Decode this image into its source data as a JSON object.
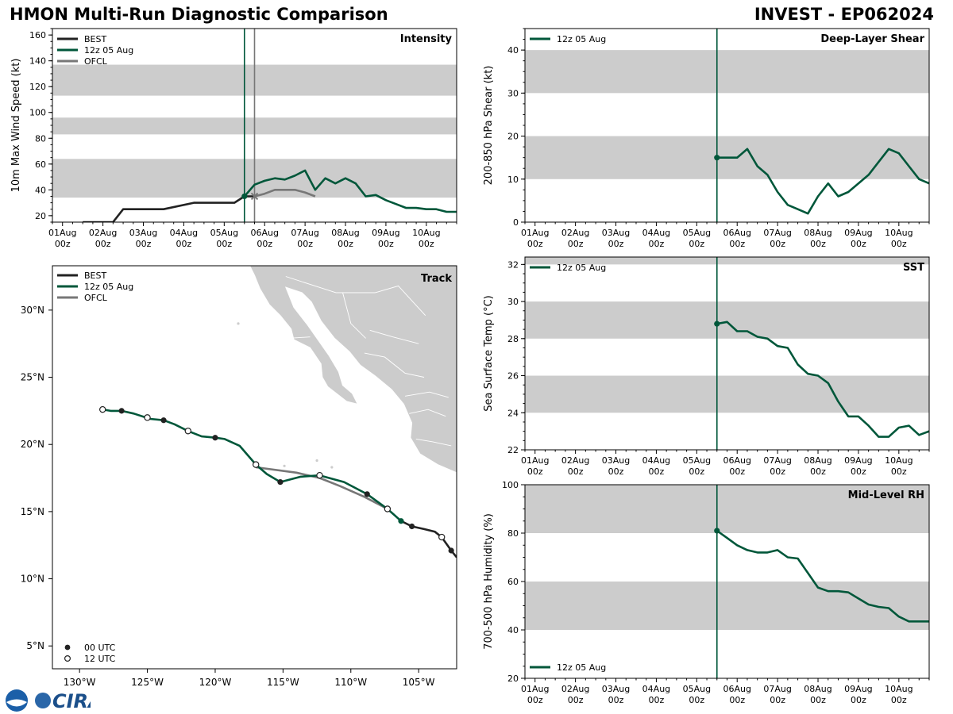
{
  "header": {
    "title_left": "HMON Multi-Run Diagnostic Comparison",
    "title_right": "INVEST - EP062024"
  },
  "logo": {
    "text": "CIRA"
  },
  "colors": {
    "best": "#222222",
    "run": "#00573a",
    "ofcl": "#777777",
    "band": "#cccccc",
    "land": "#cccccc"
  },
  "chart_data": [
    {
      "id": "intensity",
      "type": "line",
      "title": "Intensity",
      "ylabel": "10m Max Wind Speed (kt)",
      "ylim": [
        15,
        165
      ],
      "yticks": [
        20,
        40,
        60,
        80,
        100,
        120,
        140,
        160
      ],
      "xlim": [
        -0.25,
        9.75
      ],
      "xtick_days": [
        0,
        1,
        2,
        3,
        4,
        5,
        6,
        7,
        8,
        9
      ],
      "xtick_labels": [
        "01Aug",
        "02Aug",
        "03Aug",
        "04Aug",
        "05Aug",
        "06Aug",
        "07Aug",
        "08Aug",
        "09Aug",
        "10Aug"
      ],
      "xtick_sub": "00z",
      "bands": [
        [
          34,
          64
        ],
        [
          83,
          96
        ],
        [
          113,
          137
        ]
      ],
      "vlines": [
        {
          "x": 4.5,
          "series": "run"
        },
        {
          "x": 4.75,
          "series": "ofcl"
        }
      ],
      "legend": [
        "BEST",
        "12z 05 Aug",
        "OFCL"
      ],
      "series": [
        {
          "name": "BEST",
          "key": "best",
          "x": [
            0.5,
            1.25,
            1.5,
            2.25,
            2.5,
            3.25,
            3.5,
            4.0,
            4.25,
            4.5,
            4.75
          ],
          "y": [
            15,
            15,
            25,
            25,
            25,
            30,
            30,
            30,
            30,
            35,
            35
          ]
        },
        {
          "name": "12z 05 Aug",
          "key": "run",
          "x": [
            4.5,
            4.75,
            5.0,
            5.25,
            5.5,
            5.75,
            6.0,
            6.25,
            6.5,
            6.75,
            7.0,
            7.25,
            7.5,
            7.75,
            8.0,
            8.25,
            8.5,
            8.75,
            9.0,
            9.25,
            9.5,
            9.75
          ],
          "y": [
            35,
            44,
            47,
            49,
            48,
            51,
            55,
            40,
            49,
            45,
            49,
            45,
            35,
            36,
            32,
            29,
            26,
            26,
            25,
            25,
            23,
            23
          ]
        },
        {
          "name": "OFCL",
          "key": "ofcl",
          "x": [
            4.75,
            5.0,
            5.25,
            5.5,
            5.75,
            6.0,
            6.25
          ],
          "y": [
            35,
            37,
            40,
            40,
            40,
            38,
            35
          ]
        }
      ],
      "markers": [
        {
          "x": 4.5,
          "y": 35,
          "key": "run",
          "shape": "circle"
        },
        {
          "x": 4.75,
          "y": 35,
          "key": "ofcl",
          "shape": "x"
        }
      ]
    },
    {
      "id": "shear",
      "type": "line",
      "title": "Deep-Layer Shear",
      "ylabel": "200-850 hPa Shear (kt)",
      "ylim": [
        0,
        45
      ],
      "yticks": [
        0,
        10,
        20,
        30,
        40
      ],
      "xlim": [
        -0.25,
        9.75
      ],
      "xtick_days": [
        0,
        1,
        2,
        3,
        4,
        5,
        6,
        7,
        8,
        9
      ],
      "xtick_labels": [
        "01Aug",
        "02Aug",
        "03Aug",
        "04Aug",
        "05Aug",
        "06Aug",
        "07Aug",
        "08Aug",
        "09Aug",
        "10Aug"
      ],
      "xtick_sub": "00z",
      "bands": [
        [
          10,
          20
        ],
        [
          30,
          40
        ]
      ],
      "vlines": [
        {
          "x": 4.5,
          "series": "run"
        }
      ],
      "legend": [
        "12z 05 Aug"
      ],
      "series": [
        {
          "name": "12z 05 Aug",
          "key": "run",
          "x": [
            4.5,
            4.75,
            5.0,
            5.25,
            5.5,
            5.75,
            6.0,
            6.25,
            6.5,
            6.75,
            7.0,
            7.25,
            7.5,
            7.75,
            8.0,
            8.25,
            8.5,
            8.75,
            9.0,
            9.25,
            9.5,
            9.75
          ],
          "y": [
            15,
            15,
            15,
            17,
            13,
            11,
            7,
            4,
            3,
            2,
            6,
            9,
            6,
            7,
            9,
            11,
            14,
            17,
            16,
            13,
            10,
            9
          ]
        }
      ],
      "markers": [
        {
          "x": 4.5,
          "y": 15,
          "key": "run",
          "shape": "circle"
        }
      ]
    },
    {
      "id": "track",
      "type": "map",
      "title": "Track",
      "lon_range": [
        -132,
        -102.2
      ],
      "lat_range": [
        3.3,
        33.3
      ],
      "lon_ticks": [
        -130,
        -125,
        -120,
        -115,
        -110,
        -105
      ],
      "lon_labels": [
        "130°W",
        "125°W",
        "120°W",
        "115°W",
        "110°W",
        "105°W"
      ],
      "lat_ticks": [
        5,
        10,
        15,
        20,
        25,
        30
      ],
      "lat_labels": [
        "5°N",
        "10°N",
        "15°N",
        "20°N",
        "25°N",
        "30°N"
      ],
      "legend": [
        "BEST",
        "12z 05 Aug",
        "OFCL"
      ],
      "marker_legend": [
        "00 UTC",
        "12 UTC"
      ],
      "best": {
        "lon": [
          -102.2,
          -102.6,
          -103.3,
          -103.8,
          -104.6,
          -105.5,
          -106.3
        ],
        "lat": [
          11.6,
          12.1,
          13.1,
          13.5,
          13.7,
          13.9,
          14.3
        ],
        "points": [
          {
            "lon": -102.6,
            "lat": 12.1,
            "utc": "00"
          },
          {
            "lon": -103.3,
            "lat": 13.1,
            "utc": "12"
          },
          {
            "lon": -105.5,
            "lat": 13.9,
            "utc": "00"
          }
        ]
      },
      "run": {
        "lon": [
          -106.3,
          -107.3,
          -108.8,
          -110.5,
          -112.3,
          -113.7,
          -115.2,
          -116.2,
          -117.0,
          -118.2,
          -119.3,
          -120.0,
          -121.0,
          -122.0,
          -123.0,
          -123.8,
          -124.8,
          -126.0,
          -126.9,
          -127.7,
          -128.3
        ],
        "lat": [
          14.3,
          15.2,
          16.3,
          17.2,
          17.7,
          17.6,
          17.2,
          17.8,
          18.5,
          19.9,
          20.4,
          20.5,
          20.6,
          21.0,
          21.5,
          21.8,
          21.9,
          22.3,
          22.5,
          22.5,
          22.6
        ],
        "points": [
          {
            "lon": -106.3,
            "lat": 14.3,
            "utc": "00"
          },
          {
            "lon": -108.8,
            "lat": 16.3,
            "utc": "00"
          },
          {
            "lon": -112.3,
            "lat": 17.7,
            "utc": "12"
          },
          {
            "lon": -115.2,
            "lat": 17.2,
            "utc": "00"
          },
          {
            "lon": -117.0,
            "lat": 18.5,
            "utc": "12"
          },
          {
            "lon": -120.0,
            "lat": 20.5,
            "utc": "00"
          },
          {
            "lon": -122.0,
            "lat": 21.0,
            "utc": "12"
          },
          {
            "lon": -123.8,
            "lat": 21.8,
            "utc": "00"
          },
          {
            "lon": -125.0,
            "lat": 22.0,
            "utc": "12"
          },
          {
            "lon": -126.9,
            "lat": 22.5,
            "utc": "00"
          },
          {
            "lon": -128.3,
            "lat": 22.6,
            "utc": "12"
          }
        ]
      },
      "ofcl": {
        "lon": [
          -107.3,
          -109.0,
          -110.8,
          -112.3,
          -114.0,
          -117.0
        ],
        "lat": [
          15.2,
          16.1,
          16.9,
          17.5,
          17.9,
          18.3
        ],
        "points": [
          {
            "lon": -107.3,
            "lat": 15.2,
            "utc": "12"
          }
        ]
      }
    },
    {
      "id": "sst",
      "type": "line",
      "title": "SST",
      "ylabel": "Sea Surface Temp (°C)",
      "ylim": [
        22,
        32.4
      ],
      "yticks": [
        22,
        24,
        26,
        28,
        30,
        32
      ],
      "xlim": [
        -0.25,
        9.75
      ],
      "xtick_days": [
        0,
        1,
        2,
        3,
        4,
        5,
        6,
        7,
        8,
        9
      ],
      "xtick_labels": [
        "01Aug",
        "02Aug",
        "03Aug",
        "04Aug",
        "05Aug",
        "06Aug",
        "07Aug",
        "08Aug",
        "09Aug",
        "10Aug"
      ],
      "xtick_sub": "00z",
      "bands": [
        [
          24,
          26
        ],
        [
          28,
          30
        ],
        [
          32,
          32.4
        ]
      ],
      "vlines": [
        {
          "x": 4.5,
          "series": "run"
        }
      ],
      "legend": [
        "12z 05 Aug"
      ],
      "series": [
        {
          "name": "12z 05 Aug",
          "key": "run",
          "x": [
            4.5,
            4.75,
            5.0,
            5.25,
            5.5,
            5.75,
            6.0,
            6.25,
            6.5,
            6.75,
            7.0,
            7.25,
            7.5,
            7.75,
            8.0,
            8.25,
            8.5,
            8.75,
            9.0,
            9.25,
            9.5,
            9.75
          ],
          "y": [
            28.8,
            28.9,
            28.4,
            28.4,
            28.1,
            28.0,
            27.6,
            27.5,
            26.6,
            26.1,
            26.0,
            25.6,
            24.6,
            23.8,
            23.8,
            23.3,
            22.7,
            22.7,
            23.2,
            23.3,
            22.8,
            23.0
          ]
        }
      ],
      "markers": [
        {
          "x": 4.5,
          "y": 28.8,
          "key": "run",
          "shape": "circle"
        }
      ]
    },
    {
      "id": "rh",
      "type": "line",
      "title": "Mid-Level RH",
      "ylabel": "700-500 hPa Humidity (%)",
      "ylim": [
        20,
        100
      ],
      "yticks": [
        20,
        40,
        60,
        80,
        100
      ],
      "xlim": [
        -0.25,
        9.75
      ],
      "xtick_days": [
        0,
        1,
        2,
        3,
        4,
        5,
        6,
        7,
        8,
        9
      ],
      "xtick_labels": [
        "01Aug",
        "02Aug",
        "03Aug",
        "04Aug",
        "05Aug",
        "06Aug",
        "07Aug",
        "08Aug",
        "09Aug",
        "10Aug"
      ],
      "xtick_sub": "00z",
      "bands": [
        [
          40,
          60
        ],
        [
          80,
          100
        ]
      ],
      "vlines": [
        {
          "x": 4.5,
          "series": "run"
        }
      ],
      "legend": [
        "12z 05 Aug"
      ],
      "series": [
        {
          "name": "12z 05 Aug",
          "key": "run",
          "x": [
            4.5,
            4.75,
            5.0,
            5.25,
            5.5,
            5.75,
            6.0,
            6.25,
            6.5,
            6.75,
            7.0,
            7.25,
            7.5,
            7.75,
            8.0,
            8.25,
            8.5,
            8.75,
            9.0,
            9.25,
            9.5,
            9.75
          ],
          "y": [
            81,
            78,
            75,
            73,
            72,
            72,
            73,
            70,
            69.5,
            63.5,
            57.5,
            56,
            56,
            55.5,
            53,
            50.5,
            49.5,
            49,
            45.5,
            43.5,
            43.5,
            43.5
          ]
        }
      ],
      "markers": [
        {
          "x": 4.5,
          "y": 81,
          "key": "run",
          "shape": "circle"
        }
      ]
    }
  ]
}
